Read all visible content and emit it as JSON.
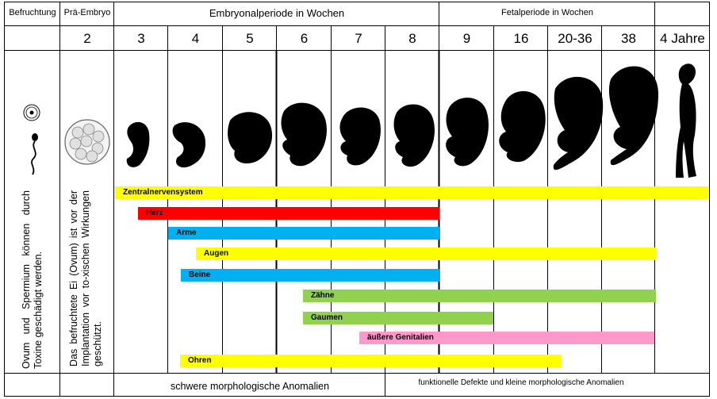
{
  "header": {
    "befruchtung": "Befruchtung",
    "praembryo": "Prä-Embryo",
    "embryonal": "Embryonalperiode in Wochen",
    "fetal": "Fetalperiode in Wochen"
  },
  "weeks": [
    "2",
    "3",
    "4",
    "5",
    "6",
    "7",
    "8",
    "9",
    "16",
    "20-36",
    "38",
    "4 Jahre"
  ],
  "left_notes": {
    "col1": "Ovum und Spermium können durch Toxine geschädigt werden.",
    "col2": "Das befruchtete Ei (Ovum) ist vor der Implantation vor to-xischen Wirkungen geschützt."
  },
  "bars": [
    {
      "label": "Zentralnervensystem",
      "color": "#ffff00"
    },
    {
      "label": "Herz",
      "color": "#ff0000"
    },
    {
      "label": "Arme",
      "color": "#00b0f0"
    },
    {
      "label": "Augen",
      "color": "#ffff00"
    },
    {
      "label": "Beine",
      "color": "#00b0f0"
    },
    {
      "label": "Zähne",
      "color": "#92d050"
    },
    {
      "label": "Gaumen",
      "color": "#92d050"
    },
    {
      "label": "äußere Genitalien",
      "color": "#ff99cc"
    },
    {
      "label": "Ohren",
      "color": "#ffff00"
    }
  ],
  "footer": {
    "schwere": "schwere morphologische Anomalien",
    "funktionelle": "funktionelle Defekte und kleine morphologische Anomalien"
  }
}
